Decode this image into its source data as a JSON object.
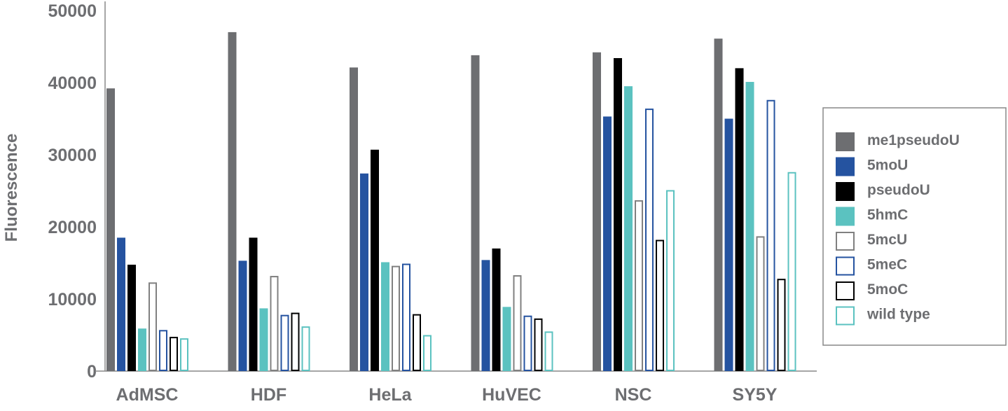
{
  "chart_data": {
    "type": "bar",
    "title": "",
    "xlabel": "",
    "ylabel": "Fluorescence",
    "ylim": [
      0,
      50000
    ],
    "yticks": [
      "0",
      "10000",
      "20000",
      "30000",
      "40000",
      "50000"
    ],
    "grid": false,
    "legend_placement": "right",
    "categories": [
      "AdMSC",
      "HDF",
      "HeLa",
      "HuVEC",
      "NSC",
      "SY5Y"
    ],
    "series": [
      {
        "name": "me1pseudoU",
        "color": "#6d6e71",
        "filled": true,
        "values": [
          39200,
          47000,
          42100,
          43800,
          44200,
          46100
        ]
      },
      {
        "name": "5moU",
        "color": "#2553a0",
        "filled": true,
        "values": [
          18500,
          15300,
          27400,
          15400,
          35300,
          35000
        ]
      },
      {
        "name": "pseudoU",
        "color": "#000000",
        "filled": true,
        "values": [
          14750,
          18500,
          30700,
          17000,
          43400,
          42000
        ]
      },
      {
        "name": "5hmC",
        "color": "#5bc2c0",
        "filled": true,
        "values": [
          5900,
          8700,
          15100,
          8900,
          39500,
          40100
        ]
      },
      {
        "name": "5mcU",
        "color": "#808080",
        "filled": false,
        "values": [
          12200,
          13100,
          14500,
          13200,
          23600,
          18600
        ]
      },
      {
        "name": "5meC",
        "color": "#2553a0",
        "filled": false,
        "values": [
          5600,
          7700,
          14800,
          7600,
          36300,
          37500
        ]
      },
      {
        "name": "5moC",
        "color": "#000000",
        "filled": false,
        "values": [
          4650,
          8000,
          7800,
          7200,
          18100,
          12700
        ]
      },
      {
        "name": "wild type",
        "color": "#5bc2c0",
        "filled": false,
        "values": [
          4450,
          6100,
          4900,
          5400,
          25000,
          27500
        ]
      }
    ]
  }
}
